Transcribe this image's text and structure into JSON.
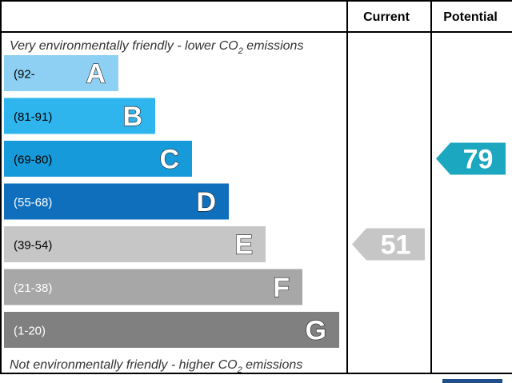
{
  "chart_data": {
    "type": "bar",
    "columns": {
      "current_label": "Current",
      "potential_label": "Potential"
    },
    "top_note": {
      "text": "Very environmentally friendly - lower CO",
      "sub": "2",
      "tail": " emissions"
    },
    "bottom_note": {
      "text": "Not environmentally friendly - higher CO",
      "sub": "2",
      "tail": " emissions"
    },
    "bands": [
      {
        "letter": "A",
        "range": "(92-",
        "min": 92,
        "max": 100,
        "color": "#8dd0f3",
        "range_color": "#000000"
      },
      {
        "letter": "B",
        "range": "(81-91)",
        "min": 81,
        "max": 91,
        "color": "#2fb5ee",
        "range_color": "#000000"
      },
      {
        "letter": "C",
        "range": "(69-80)",
        "min": 69,
        "max": 80,
        "color": "#179ad9",
        "range_color": "#000000"
      },
      {
        "letter": "D",
        "range": "(55-68)",
        "min": 55,
        "max": 68,
        "color": "#0f6fbd",
        "range_color": "#ffffff"
      },
      {
        "letter": "E",
        "range": "(39-54)",
        "min": 39,
        "max": 54,
        "color": "#c6c6c6",
        "range_color": "#000000"
      },
      {
        "letter": "F",
        "range": "(21-38)",
        "min": 21,
        "max": 38,
        "color": "#a7a7a7",
        "range_color": "#ffffff"
      },
      {
        "letter": "G",
        "range": "(1-20)",
        "min": 1,
        "max": 20,
        "color": "#808080",
        "range_color": "#ffffff"
      }
    ],
    "current": {
      "value": 51,
      "band": "E",
      "color": "#c6c6c6"
    },
    "potential": {
      "value": 79,
      "band": "C",
      "color": "#1aa7bf"
    }
  }
}
